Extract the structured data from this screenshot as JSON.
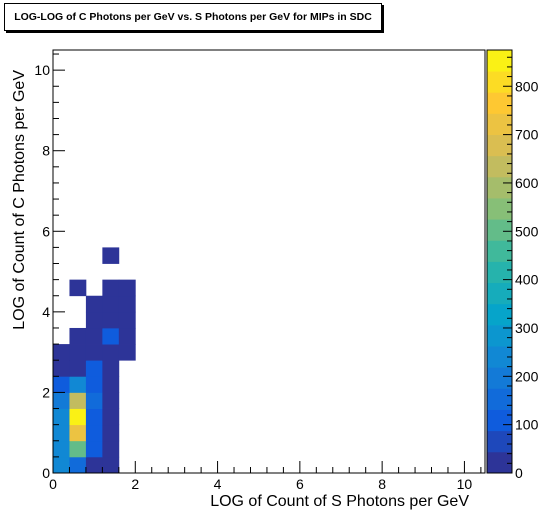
{
  "chart_data": {
    "type": "heatmap",
    "title": "LOG-LOG of C Photons per GeV vs. S Photons per GeV for MIPs in SDC",
    "xlabel": "LOG of Count of S Photons per GeV",
    "ylabel": "LOG of Count of C Photons per GeV",
    "xlim": [
      0,
      10.5
    ],
    "ylim": [
      0,
      10.5
    ],
    "x_ticks": [
      0,
      2,
      4,
      6,
      8,
      10
    ],
    "y_ticks": [
      0,
      2,
      4,
      6,
      8,
      10
    ],
    "zlim": [
      0,
      875
    ],
    "z_ticks": [
      0,
      100,
      200,
      300,
      400,
      500,
      600,
      700,
      800
    ],
    "bin_width": 0.4,
    "bins": [
      {
        "x": 0.0,
        "y": 0.0,
        "z": 230
      },
      {
        "x": 0.4,
        "y": 0.0,
        "z": 150
      },
      {
        "x": 0.8,
        "y": 0.0,
        "z": 40
      },
      {
        "x": 1.2,
        "y": 0.0,
        "z": 20
      },
      {
        "x": 0.0,
        "y": 0.4,
        "z": 250
      },
      {
        "x": 0.4,
        "y": 0.4,
        "z": 490
      },
      {
        "x": 0.8,
        "y": 0.4,
        "z": 110
      },
      {
        "x": 1.2,
        "y": 0.4,
        "z": 20
      },
      {
        "x": 0.0,
        "y": 0.8,
        "z": 250
      },
      {
        "x": 0.4,
        "y": 0.8,
        "z": 700
      },
      {
        "x": 0.8,
        "y": 0.8,
        "z": 130
      },
      {
        "x": 1.2,
        "y": 0.8,
        "z": 20
      },
      {
        "x": 0.0,
        "y": 1.2,
        "z": 230
      },
      {
        "x": 0.4,
        "y": 1.2,
        "z": 860
      },
      {
        "x": 0.8,
        "y": 1.2,
        "z": 120
      },
      {
        "x": 1.2,
        "y": 1.2,
        "z": 20
      },
      {
        "x": 0.0,
        "y": 1.6,
        "z": 200
      },
      {
        "x": 0.4,
        "y": 1.6,
        "z": 640
      },
      {
        "x": 0.8,
        "y": 1.6,
        "z": 140
      },
      {
        "x": 1.2,
        "y": 1.6,
        "z": 20
      },
      {
        "x": 0.0,
        "y": 2.0,
        "z": 100
      },
      {
        "x": 0.4,
        "y": 2.0,
        "z": 250
      },
      {
        "x": 0.8,
        "y": 2.0,
        "z": 120
      },
      {
        "x": 1.2,
        "y": 2.0,
        "z": 20
      },
      {
        "x": 0.0,
        "y": 2.4,
        "z": 20
      },
      {
        "x": 0.4,
        "y": 2.4,
        "z": 30
      },
      {
        "x": 0.8,
        "y": 2.4,
        "z": 100
      },
      {
        "x": 1.2,
        "y": 2.4,
        "z": 30
      },
      {
        "x": 0.0,
        "y": 2.8,
        "z": 20
      },
      {
        "x": 0.4,
        "y": 2.8,
        "z": 20
      },
      {
        "x": 0.8,
        "y": 2.8,
        "z": 20
      },
      {
        "x": 1.2,
        "y": 2.8,
        "z": 10
      },
      {
        "x": 1.6,
        "y": 2.8,
        "z": 10
      },
      {
        "x": 0.4,
        "y": 3.2,
        "z": 20
      },
      {
        "x": 0.8,
        "y": 3.2,
        "z": 20
      },
      {
        "x": 1.2,
        "y": 3.2,
        "z": 120
      },
      {
        "x": 1.6,
        "y": 3.2,
        "z": 20
      },
      {
        "x": 0.8,
        "y": 3.6,
        "z": 20
      },
      {
        "x": 1.2,
        "y": 3.6,
        "z": 20
      },
      {
        "x": 1.6,
        "y": 3.6,
        "z": 20
      },
      {
        "x": 0.8,
        "y": 4.0,
        "z": 20
      },
      {
        "x": 1.2,
        "y": 4.0,
        "z": 20
      },
      {
        "x": 1.6,
        "y": 4.0,
        "z": 20
      },
      {
        "x": 0.4,
        "y": 4.4,
        "z": 10
      },
      {
        "x": 1.2,
        "y": 4.4,
        "z": 20
      },
      {
        "x": 1.6,
        "y": 4.4,
        "z": 20
      },
      {
        "x": 1.2,
        "y": 5.2,
        "z": 20
      }
    ]
  }
}
